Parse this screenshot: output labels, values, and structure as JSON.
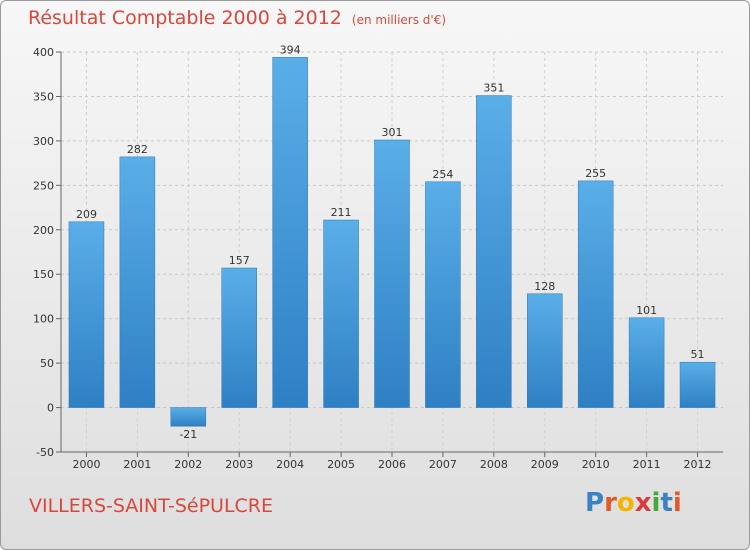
{
  "title": "Résultat Comptable 2000 à 2012",
  "unit_note": "(en milliers d'€)",
  "location": "VILLERS-SAINT-SéPULCRE",
  "logo": {
    "text": "Proxiti",
    "letters": [
      "P",
      "r",
      "o",
      "x",
      "i",
      "t",
      "i"
    ],
    "colors": [
      "#3b82c4",
      "#e35a2a",
      "#f4b400",
      "#d93b3b",
      "#46a83c",
      "#3b82c4",
      "#e35a2a"
    ]
  },
  "chart_data": {
    "type": "bar",
    "categories": [
      "2000",
      "2001",
      "2002",
      "2003",
      "2004",
      "2005",
      "2006",
      "2007",
      "2008",
      "2009",
      "2010",
      "2011",
      "2012"
    ],
    "values": [
      209,
      282,
      -21,
      157,
      394,
      211,
      301,
      254,
      351,
      128,
      255,
      101,
      51
    ],
    "title": "Résultat Comptable 2000 à 2012",
    "ylim": [
      -50,
      400
    ],
    "yticks": [
      -50,
      0,
      50,
      100,
      150,
      200,
      250,
      300,
      350,
      400
    ],
    "grid": true,
    "bar_color": "#3f97dc"
  }
}
